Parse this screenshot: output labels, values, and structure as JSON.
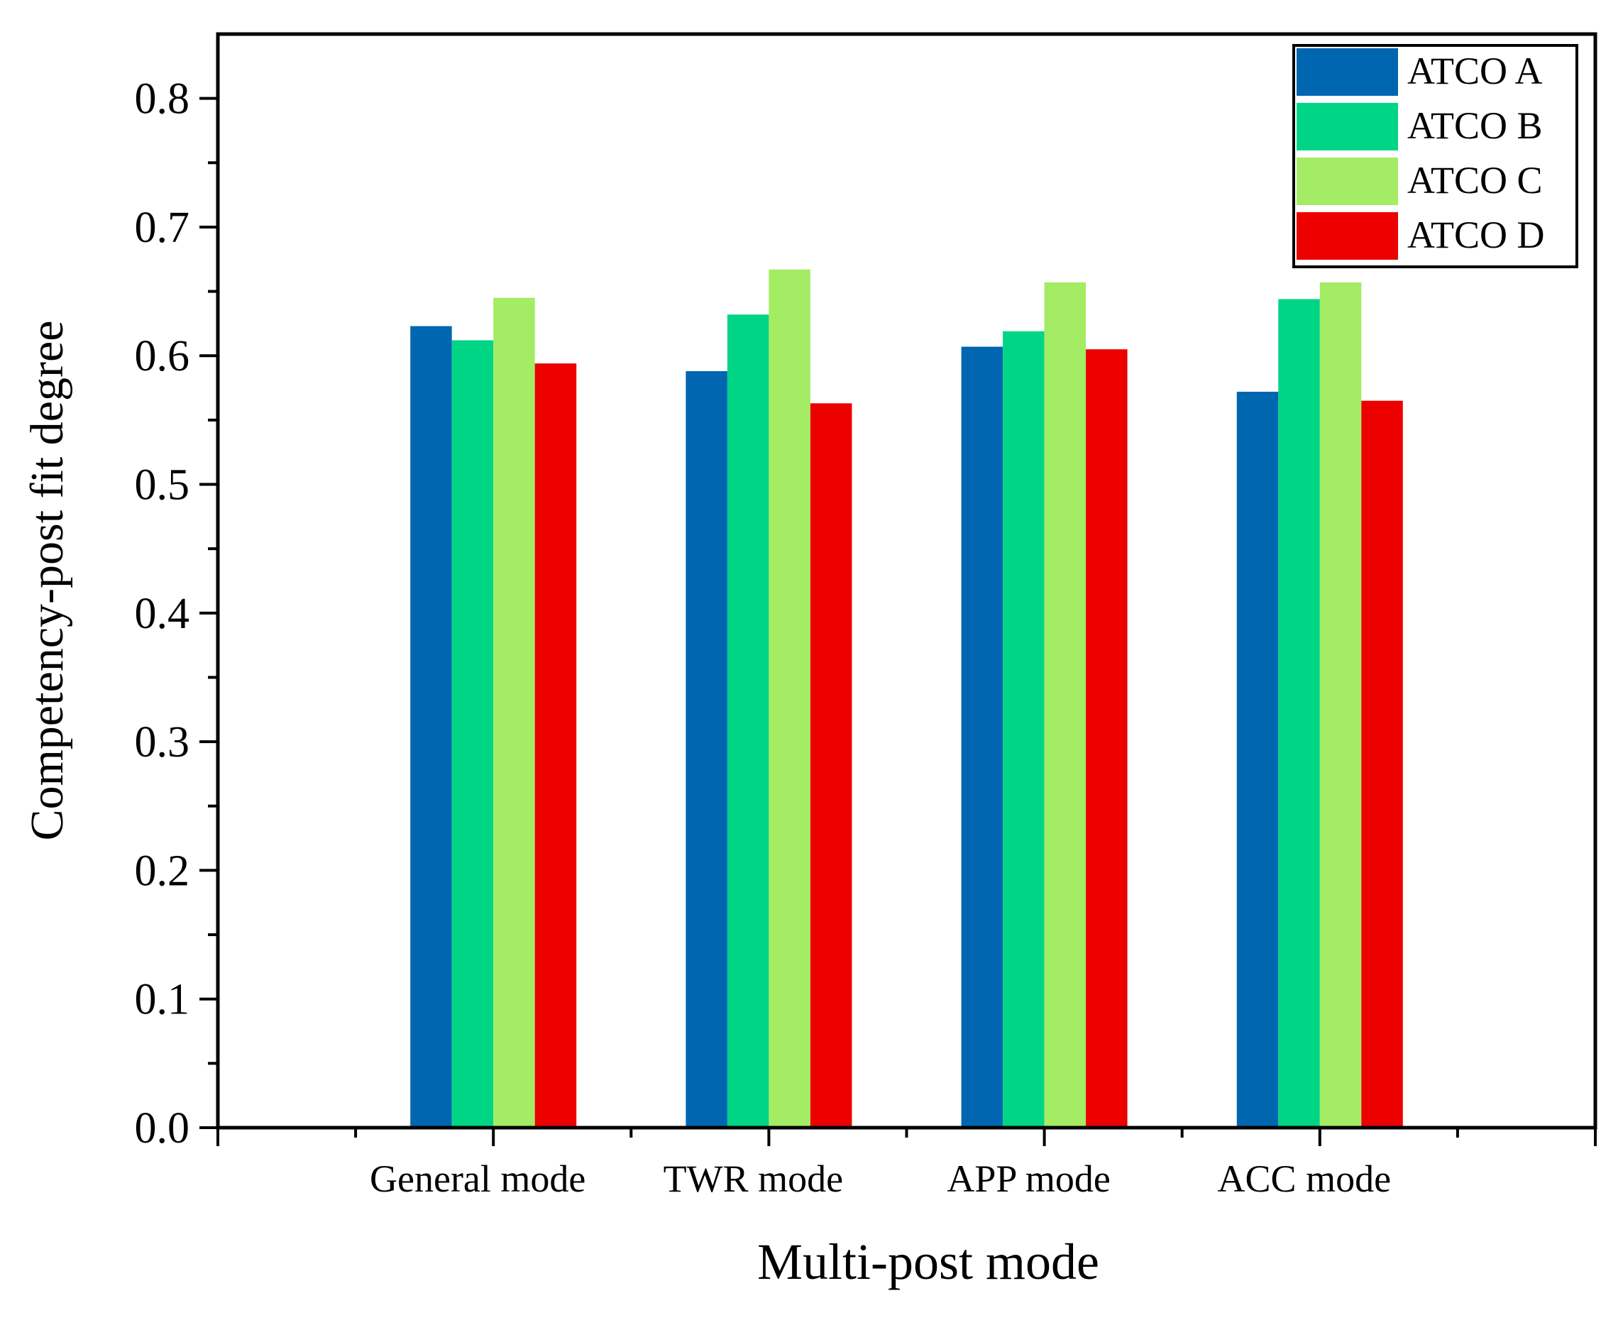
{
  "chart_data": {
    "type": "bar",
    "title": "",
    "xlabel": "Multi-post mode",
    "ylabel": "Competency-post fit degree",
    "categories": [
      "General mode",
      "TWR mode",
      "APP mode",
      "ACC mode"
    ],
    "series": [
      {
        "name": "ATCO A",
        "color": "#0066b0",
        "values": [
          0.623,
          0.588,
          0.607,
          0.572
        ]
      },
      {
        "name": "ATCO B",
        "color": "#00d586",
        "values": [
          0.612,
          0.632,
          0.619,
          0.644
        ]
      },
      {
        "name": "ATCO C",
        "color": "#a3ec64",
        "values": [
          0.645,
          0.667,
          0.657,
          0.657
        ]
      },
      {
        "name": "ATCO D",
        "color": "#ec0000",
        "values": [
          0.594,
          0.563,
          0.605,
          0.565
        ]
      }
    ],
    "ylim": [
      0,
      0.85
    ],
    "yticks": [
      "0.0",
      "0.1",
      "0.2",
      "0.3",
      "0.4",
      "0.5",
      "0.6",
      "0.7",
      "0.8"
    ],
    "grid": false,
    "legend_position": "top-right"
  }
}
